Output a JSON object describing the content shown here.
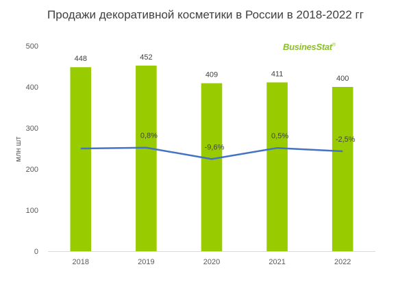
{
  "title": "Продажи декоративной косметики в России в 2018-2022 гг",
  "logo": {
    "text": "BusinesStat",
    "mark": "®",
    "color": "#8bbf2a"
  },
  "chart_data": {
    "type": "bar",
    "categories": [
      "2018",
      "2019",
      "2020",
      "2021",
      "2022"
    ],
    "values": [
      448,
      452,
      409,
      411,
      400
    ],
    "value_labels": [
      "448",
      "452",
      "409",
      "411",
      "400"
    ],
    "ylabel": "млн шт",
    "ylim": [
      0,
      500
    ],
    "yticks": [
      "0",
      "100",
      "200",
      "300",
      "400",
      "500"
    ],
    "bar_color": "#99cc00",
    "growth_line": {
      "values": [
        null,
        0.8,
        -9.6,
        0.5,
        -2.5
      ],
      "labels": [
        "",
        "0,8%",
        "-9,6%",
        "0,5%",
        "-2,5%"
      ],
      "color": "#4472c4"
    },
    "grid": false,
    "legend": "none"
  }
}
